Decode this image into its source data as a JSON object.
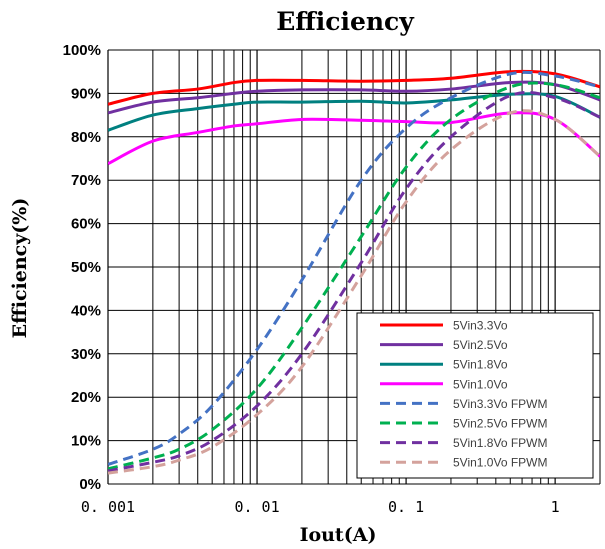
{
  "chart_data": {
    "type": "line",
    "title": "Efficiency",
    "xlabel": "Iout(A)",
    "ylabel": "Efficiency(%)",
    "x_scale": "log",
    "xlim": [
      0.001,
      2
    ],
    "ylim": [
      0,
      100
    ],
    "x_ticks": [
      0.001,
      0.01,
      0.1,
      1
    ],
    "x_tick_labels": [
      "0. 001",
      "0. 01",
      "0. 1",
      "1"
    ],
    "y_ticks": [
      0,
      10,
      20,
      30,
      40,
      50,
      60,
      70,
      80,
      90,
      100
    ],
    "y_tick_labels": [
      "0%",
      "10%",
      "20%",
      "30%",
      "40%",
      "50%",
      "60%",
      "70%",
      "80%",
      "90%",
      "100%"
    ],
    "grid": true,
    "legend_position": "bottom-right",
    "series": [
      {
        "name": "5Vin3.3Vo",
        "color": "#ff0000",
        "dashed": false,
        "x": [
          0.001,
          0.002,
          0.004,
          0.007,
          0.01,
          0.02,
          0.05,
          0.1,
          0.2,
          0.5,
          1,
          2
        ],
        "y": [
          87.5,
          90,
          91,
          92.5,
          93,
          93,
          92.8,
          93,
          93.5,
          95,
          94.5,
          91.5
        ]
      },
      {
        "name": "5Vin2.5Vo",
        "color": "#7030a0",
        "dashed": false,
        "x": [
          0.001,
          0.002,
          0.004,
          0.007,
          0.01,
          0.02,
          0.05,
          0.1,
          0.2,
          0.5,
          1,
          2
        ],
        "y": [
          85.5,
          88,
          89,
          90,
          90.5,
          90.8,
          90.8,
          90.5,
          91,
          92.5,
          92,
          88.5
        ]
      },
      {
        "name": "5Vin1.8Vo",
        "color": "#008080",
        "dashed": false,
        "x": [
          0.001,
          0.002,
          0.004,
          0.007,
          0.01,
          0.02,
          0.05,
          0.1,
          0.2,
          0.5,
          1,
          2
        ],
        "y": [
          81.5,
          85,
          86.5,
          87.5,
          88,
          88,
          88.2,
          87.8,
          88.5,
          89.8,
          89.3,
          84.5
        ]
      },
      {
        "name": "5Vin1.0Vo",
        "color": "#ff00ff",
        "dashed": false,
        "x": [
          0.001,
          0.002,
          0.004,
          0.007,
          0.01,
          0.02,
          0.05,
          0.1,
          0.2,
          0.5,
          1,
          2
        ],
        "y": [
          73.8,
          79,
          81,
          82.5,
          83,
          84,
          83.8,
          83.5,
          83.3,
          85.5,
          84,
          75.5
        ]
      },
      {
        "name": "5Vin3.3Vo FPWM",
        "color": "#4472c4",
        "dashed": true,
        "x": [
          0.001,
          0.002,
          0.003,
          0.005,
          0.01,
          0.02,
          0.05,
          0.1,
          0.2,
          0.5,
          1,
          2
        ],
        "y": [
          4.5,
          8,
          11.5,
          18,
          31,
          47,
          70,
          82,
          89,
          94.5,
          94,
          91.5
        ]
      },
      {
        "name": "5Vin2.5Vo FPWM",
        "color": "#00b050",
        "dashed": true,
        "x": [
          0.001,
          0.002,
          0.003,
          0.005,
          0.01,
          0.02,
          0.05,
          0.1,
          0.2,
          0.5,
          1,
          2
        ],
        "y": [
          3.5,
          6,
          8,
          12.5,
          22,
          36,
          57,
          73,
          84,
          91.5,
          92,
          89
        ]
      },
      {
        "name": "5Vin1.8Vo FPWM",
        "color": "#7030a0",
        "dashed": true,
        "x": [
          0.001,
          0.002,
          0.003,
          0.005,
          0.01,
          0.02,
          0.05,
          0.1,
          0.2,
          0.5,
          1,
          2
        ],
        "y": [
          3,
          5,
          6.5,
          10,
          18,
          30,
          51,
          68,
          80,
          89.5,
          89,
          84.5
        ]
      },
      {
        "name": "5Vin1.0Vo FPWM",
        "color": "#d4a29c",
        "dashed": true,
        "x": [
          0.001,
          0.002,
          0.003,
          0.005,
          0.01,
          0.02,
          0.05,
          0.1,
          0.2,
          0.5,
          1,
          2
        ],
        "y": [
          2.5,
          4,
          5.5,
          8.5,
          16,
          27,
          48,
          65,
          77,
          85.5,
          84,
          75.5
        ]
      }
    ]
  }
}
